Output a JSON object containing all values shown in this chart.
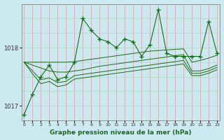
{
  "xlabel": "Graphe pression niveau de la mer (hPa)",
  "bg_color": "#cce8f0",
  "line_color": "#1a6b1a",
  "grid_color_v": "#b0d8c8",
  "grid_color_h": "#f0b0b0",
  "x_ticks": [
    0,
    1,
    2,
    3,
    4,
    5,
    6,
    7,
    8,
    9,
    10,
    11,
    12,
    13,
    14,
    15,
    16,
    17,
    18,
    19,
    20,
    21,
    22,
    23
  ],
  "ylim": [
    1016.75,
    1018.75
  ],
  "yticks": [
    1017,
    1018
  ],
  "series_wiggly": [
    1016.85,
    1017.2,
    1017.5,
    1017.7,
    1017.45,
    1017.5,
    1017.75,
    1018.5,
    1018.3,
    1018.15,
    1018.1,
    1018.0,
    1018.15,
    1018.1,
    1017.85,
    1018.05,
    1018.65,
    1017.9,
    1017.85,
    1017.85,
    1017.85,
    1017.85,
    1018.45,
    1017.9
  ],
  "series_flat1": [
    1017.75,
    1017.75,
    1017.75,
    1017.75,
    1017.75,
    1017.75,
    1017.76,
    1017.78,
    1017.8,
    1017.82,
    1017.84,
    1017.86,
    1017.88,
    1017.9,
    1017.92,
    1017.94,
    1017.95,
    1017.96,
    1017.97,
    1017.98,
    1017.75,
    1017.78,
    1017.82,
    1017.87
  ],
  "series_flat2": [
    1017.75,
    1017.7,
    1017.65,
    1017.6,
    1017.58,
    1017.58,
    1017.6,
    1017.62,
    1017.65,
    1017.68,
    1017.7,
    1017.72,
    1017.74,
    1017.76,
    1017.78,
    1017.8,
    1017.82,
    1017.84,
    1017.86,
    1017.88,
    1017.6,
    1017.6,
    1017.64,
    1017.7
  ],
  "series_flat3": [
    1017.75,
    1017.6,
    1017.45,
    1017.48,
    1017.4,
    1017.42,
    1017.52,
    1017.54,
    1017.56,
    1017.58,
    1017.6,
    1017.62,
    1017.64,
    1017.66,
    1017.68,
    1017.7,
    1017.72,
    1017.74,
    1017.76,
    1017.78,
    1017.56,
    1017.56,
    1017.6,
    1017.66
  ],
  "series_flat4": [
    1017.75,
    1017.55,
    1017.38,
    1017.42,
    1017.33,
    1017.36,
    1017.46,
    1017.48,
    1017.5,
    1017.52,
    1017.54,
    1017.56,
    1017.58,
    1017.6,
    1017.62,
    1017.64,
    1017.66,
    1017.68,
    1017.7,
    1017.72,
    1017.52,
    1017.52,
    1017.56,
    1017.62
  ]
}
